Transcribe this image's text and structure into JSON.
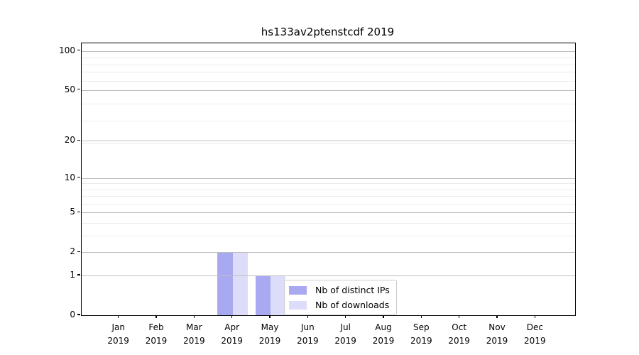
{
  "title": "hs133av2ptenstcdf 2019",
  "chart_data": {
    "type": "bar",
    "title": "hs133av2ptenstcdf 2019",
    "categories": [
      "Jan",
      "Feb",
      "Mar",
      "Apr",
      "May",
      "Jun",
      "Jul",
      "Aug",
      "Sep",
      "Oct",
      "Nov",
      "Dec"
    ],
    "category_year": "2019",
    "series": [
      {
        "name": "Nb of distinct IPs",
        "color": "#a9a9f2",
        "values": [
          0,
          0,
          0,
          2,
          1,
          0,
          0,
          0,
          0,
          0,
          0,
          0
        ]
      },
      {
        "name": "Nb of downloads",
        "color": "#ddddf9",
        "values": [
          0,
          0,
          0,
          2,
          1,
          0,
          0,
          0,
          0,
          0,
          0,
          0
        ]
      }
    ],
    "xlabel": "",
    "ylabel": "",
    "yscale": "log1p",
    "ylim": [
      0,
      114
    ],
    "y_ticks": [
      0,
      1,
      2,
      5,
      10,
      20,
      50,
      100
    ],
    "y_minor_gridlines": [
      3,
      4,
      6,
      7,
      8,
      9,
      19,
      29,
      39,
      59,
      69,
      79,
      89
    ],
    "grid": "on",
    "legend_position": "lower center (inside axes)"
  },
  "colors": {
    "background": "#ffffff",
    "spine": "#000000",
    "grid_major": "#bdbdbd",
    "grid_minor": "#ebebeb",
    "text": "#000000",
    "legend_border": "#cccccc"
  }
}
